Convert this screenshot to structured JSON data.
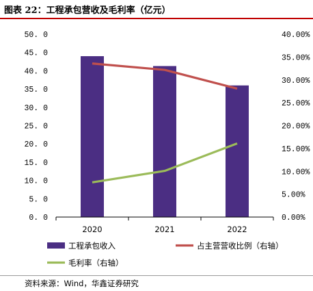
{
  "header": {
    "title": "图表 22：工程承包营收及毛利率（亿元）"
  },
  "footer": {
    "source": "资料来源：Wind，华鑫证券研究"
  },
  "chart_data": {
    "type": "bar",
    "categories": [
      "2020",
      "2021",
      "2022"
    ],
    "series": [
      {
        "name": "工程承包收入",
        "kind": "bar",
        "axis": "left",
        "values": [
          44.0,
          41.3,
          36.0
        ],
        "color": "#4b2e83"
      },
      {
        "name": "占主营营收比例（右轴）",
        "kind": "line",
        "axis": "right",
        "values": [
          33.6,
          32.2,
          28.1
        ],
        "color": "#c0504d"
      },
      {
        "name": "毛利率（右轴）",
        "kind": "line",
        "axis": "right",
        "values": [
          7.6,
          10.1,
          16.1
        ],
        "color": "#9bbb59"
      }
    ],
    "y_left": {
      "min": 0,
      "max": 50,
      "step": 5,
      "tick_labels": [
        "0. 0",
        "5. 0",
        "10. 0",
        "15. 0",
        "20. 0",
        "25. 0",
        "30. 0",
        "35. 0",
        "40. 0",
        "45. 0",
        "50. 0"
      ]
    },
    "y_right": {
      "min": 0,
      "max": 40,
      "step": 5,
      "tick_labels": [
        "0.00%",
        "5.00%",
        "10.00%",
        "15.00%",
        "20.00%",
        "25.00%",
        "30.00%",
        "35.00%",
        "40.00%"
      ]
    },
    "grid": false,
    "legend_position": "bottom"
  }
}
